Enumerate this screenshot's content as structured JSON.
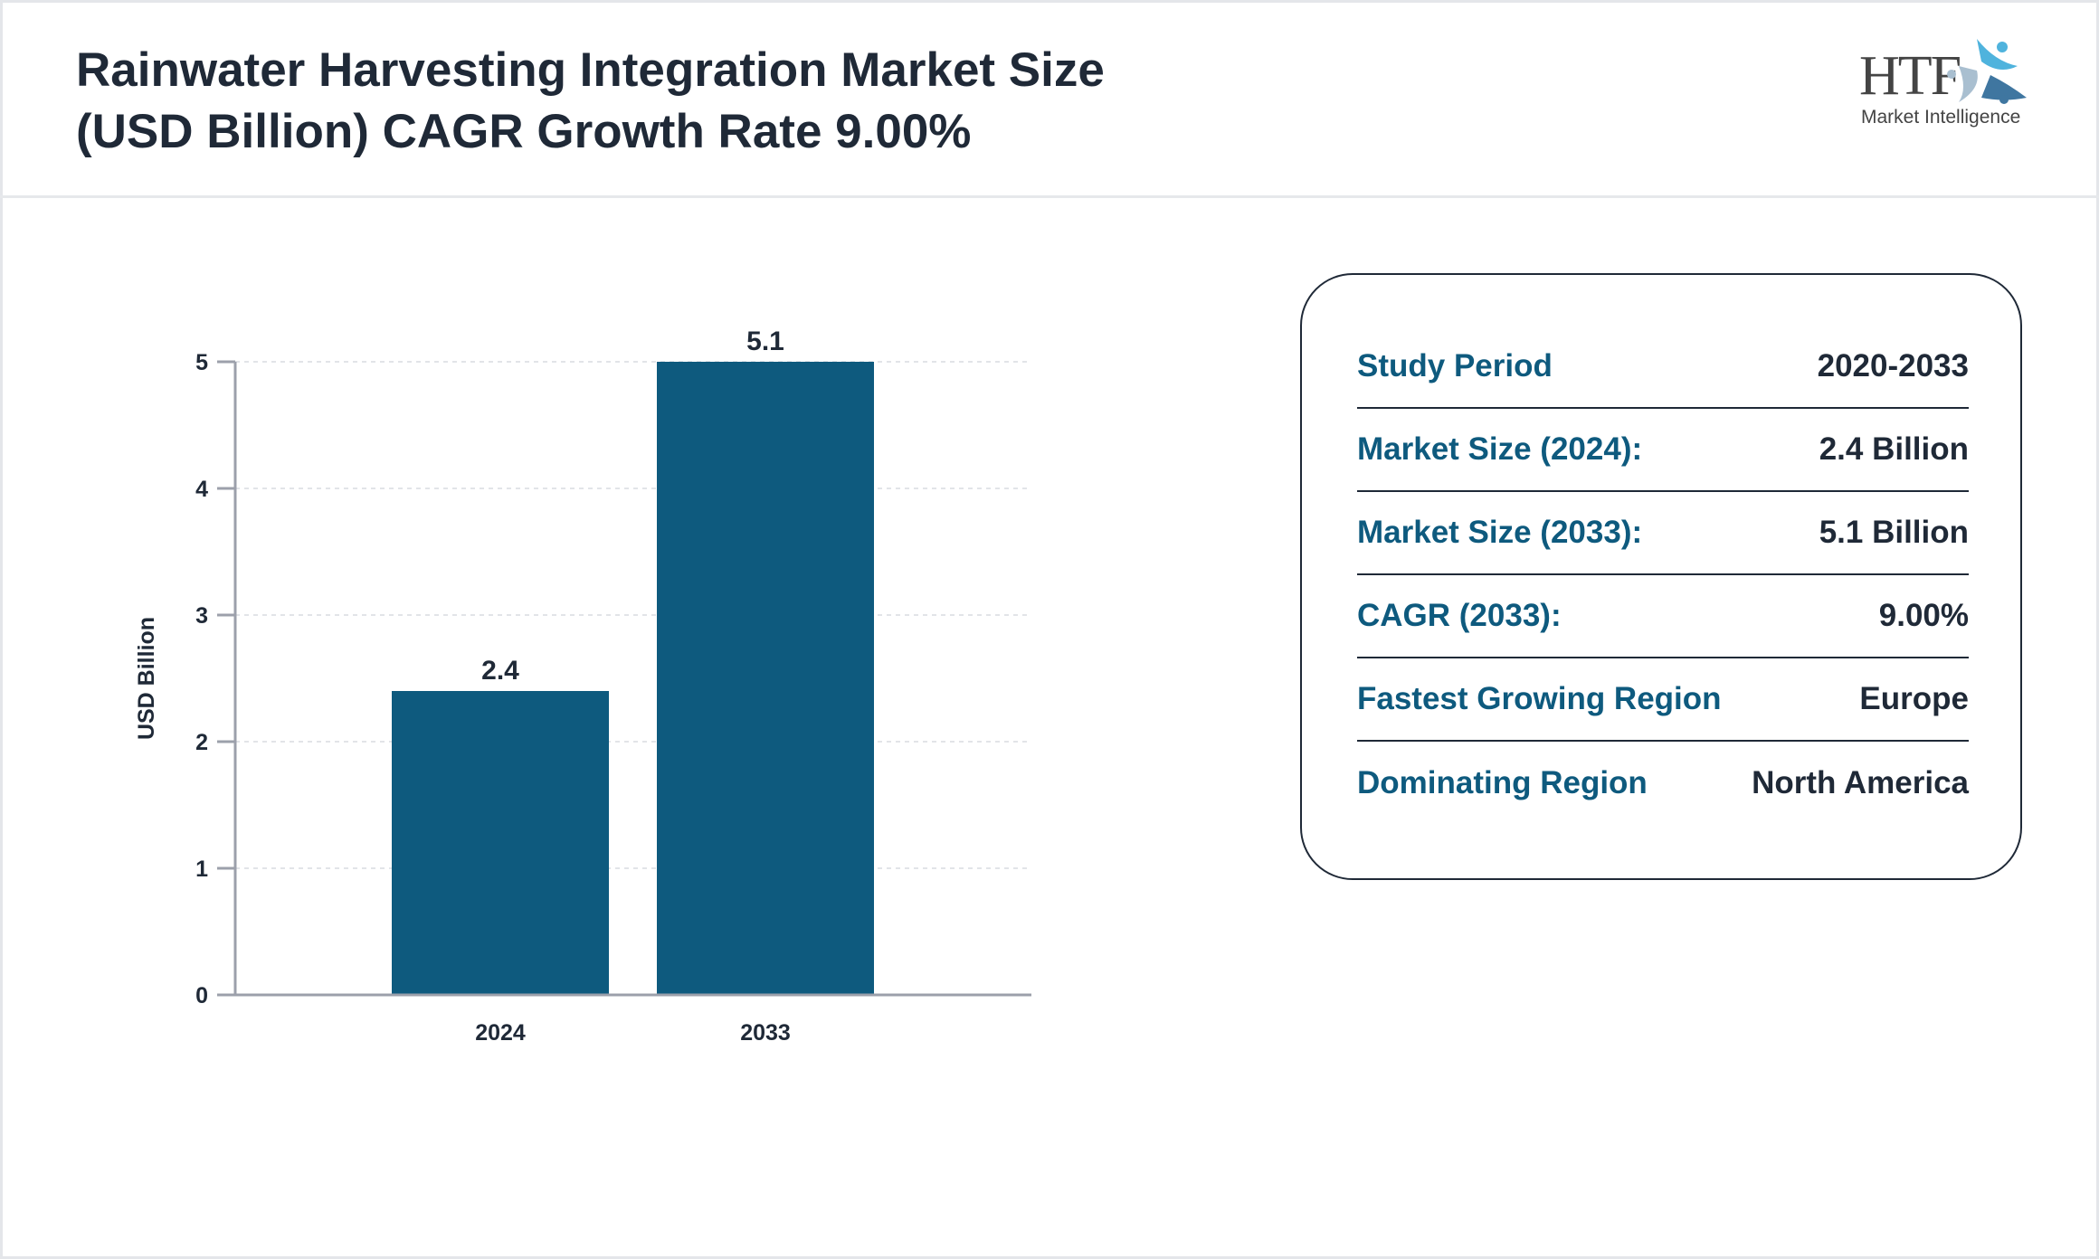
{
  "header": {
    "title_line1": "Rainwater Harvesting Integration Market Size",
    "title_line2": "(USD Billion) CAGR Growth Rate 9.00%"
  },
  "logo": {
    "text": "HTF",
    "subtitle": "Market Intelligence"
  },
  "chart_data": {
    "type": "bar",
    "categories": [
      "2024",
      "2033"
    ],
    "values": [
      2.4,
      5.1
    ],
    "data_labels": [
      "2.4",
      "5.1"
    ],
    "title": "",
    "xlabel": "",
    "ylabel": "USD Billion",
    "ylim": [
      0,
      5
    ],
    "yticks": [
      "0",
      "1",
      "2",
      "3",
      "4",
      "5"
    ],
    "grid": true,
    "bar_color": "#0e5a7e"
  },
  "summary": {
    "rows": [
      {
        "label": "Study Period",
        "value": "2020-2033"
      },
      {
        "label": "Market Size (2024):",
        "value": "2.4 Billion"
      },
      {
        "label": "Market Size (2033):",
        "value": "5.1 Billion"
      },
      {
        "label": "CAGR (2033):",
        "value": "9.00%"
      },
      {
        "label": "Fastest Growing Region",
        "value": "Europe"
      },
      {
        "label": "Dominating Region",
        "value": "North America"
      }
    ]
  },
  "colors": {
    "accent": "#0e5a7e",
    "text": "#1f2937"
  }
}
